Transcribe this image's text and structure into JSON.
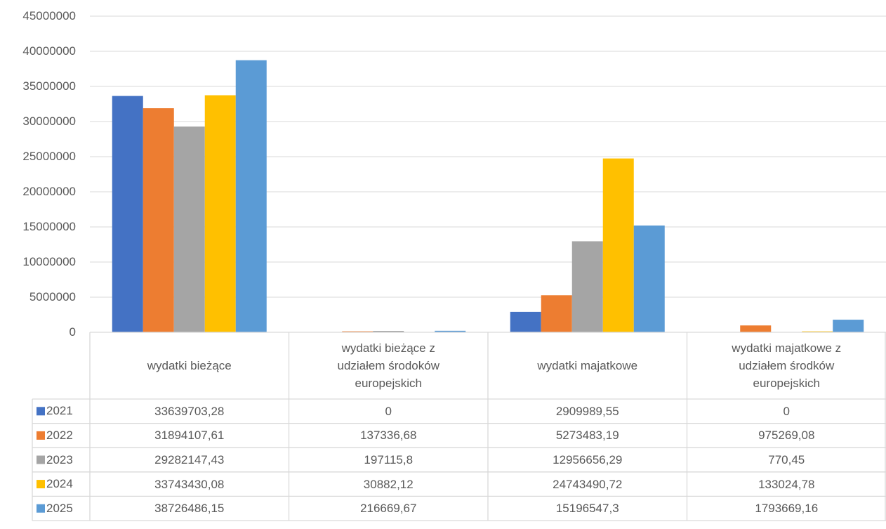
{
  "chart_data": {
    "type": "bar",
    "categories": [
      "wydatki bieżące",
      "wydatki bieżące z udziałem środoków europejskich",
      "wydatki majatkowe",
      "wydatki majatkowe z udziałem środków europejskich"
    ],
    "series": [
      {
        "name": "2021",
        "color": "#4472c4",
        "values": [
          33639703.28,
          0,
          2909989.55,
          0
        ],
        "value_labels": [
          "33639703,28",
          "0",
          "2909989,55",
          "0"
        ]
      },
      {
        "name": "2022",
        "color": "#ed7d31",
        "values": [
          31894107.61,
          137336.68,
          5273483.19,
          975269.08
        ],
        "value_labels": [
          "31894107,61",
          "137336,68",
          "5273483,19",
          "975269,08"
        ]
      },
      {
        "name": "2023",
        "color": "#a5a5a5",
        "values": [
          29282147.43,
          197115.8,
          12956656.29,
          770.45
        ],
        "value_labels": [
          "29282147,43",
          "197115,8",
          "12956656,29",
          "770,45"
        ]
      },
      {
        "name": "2024",
        "color": "#ffc000",
        "values": [
          33743430.08,
          30882.12,
          24743490.72,
          133024.78
        ],
        "value_labels": [
          "33743430,08",
          "30882,12",
          "24743490,72",
          "133024,78"
        ]
      },
      {
        "name": "2025",
        "color": "#5b9bd5",
        "values": [
          38726486.15,
          216669.67,
          15196547.3,
          1793669.16
        ],
        "value_labels": [
          "38726486,15",
          "216669,67",
          "15196547,3",
          "1793669,16"
        ]
      }
    ],
    "ylim": [
      0,
      45000000
    ],
    "yticks": [
      0,
      5000000,
      10000000,
      15000000,
      20000000,
      25000000,
      30000000,
      35000000,
      40000000,
      45000000
    ],
    "grid": true
  }
}
